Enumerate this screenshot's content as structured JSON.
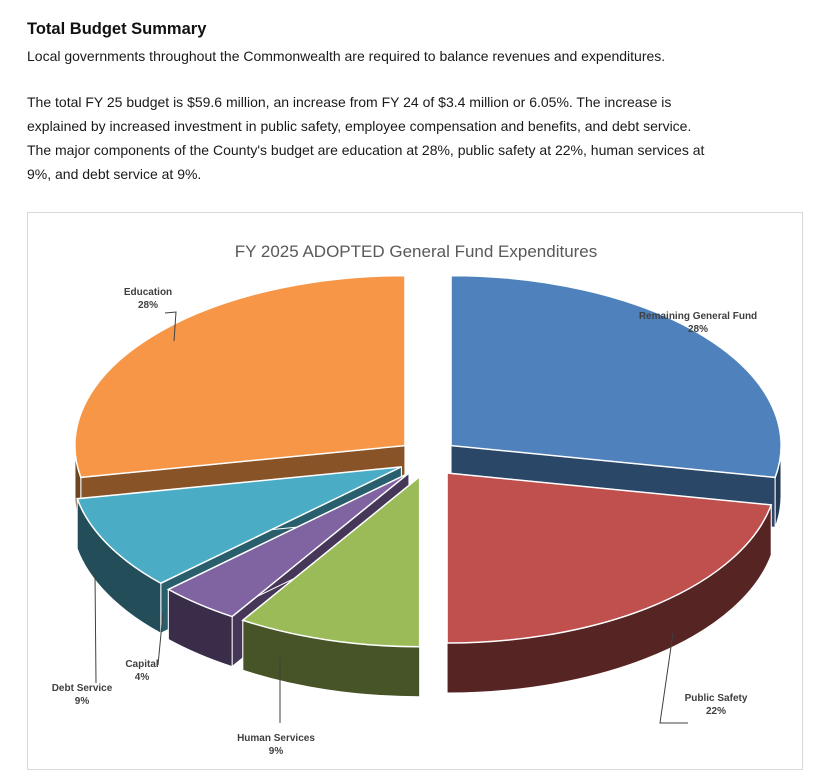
{
  "document": {
    "heading": "Total Budget Summary",
    "intro": "Local governments throughout the Commonwealth are required to balance revenues and expenditures.",
    "body_lines": [
      "The total FY 25 budget is $59.6 million, an increase from FY 24 of $3.4 million or 6.05%. The increase is",
      "explained by increased investment in public safety, employee compensation and benefits, and debt service.",
      "The major components of the County's budget are education at 28%, public safety at 22%, human services at",
      "9%, and debt service at 9%."
    ]
  },
  "chart_data": {
    "type": "pie",
    "style": "3d-exploded",
    "title": "FY 2025 ADOPTED General Fund Expenditures",
    "slices": [
      {
        "label": "Remaining General Fund",
        "value_label": "28%",
        "value": 28,
        "color": "#4F81BD"
      },
      {
        "label": "Public Safety",
        "value_label": "22%",
        "value": 22,
        "color": "#C0504D"
      },
      {
        "label": "Human Services",
        "value_label": "9%",
        "value": 9,
        "color": "#9BBB59"
      },
      {
        "label": "Capital",
        "value_label": "4%",
        "value": 4,
        "color": "#8064A2"
      },
      {
        "label": "Debt Service",
        "value_label": "9%",
        "value": 9,
        "color": "#4BACC6"
      },
      {
        "label": "Education",
        "value_label": "28%",
        "value": 28,
        "color": "#F79646"
      }
    ],
    "legend": "none"
  }
}
